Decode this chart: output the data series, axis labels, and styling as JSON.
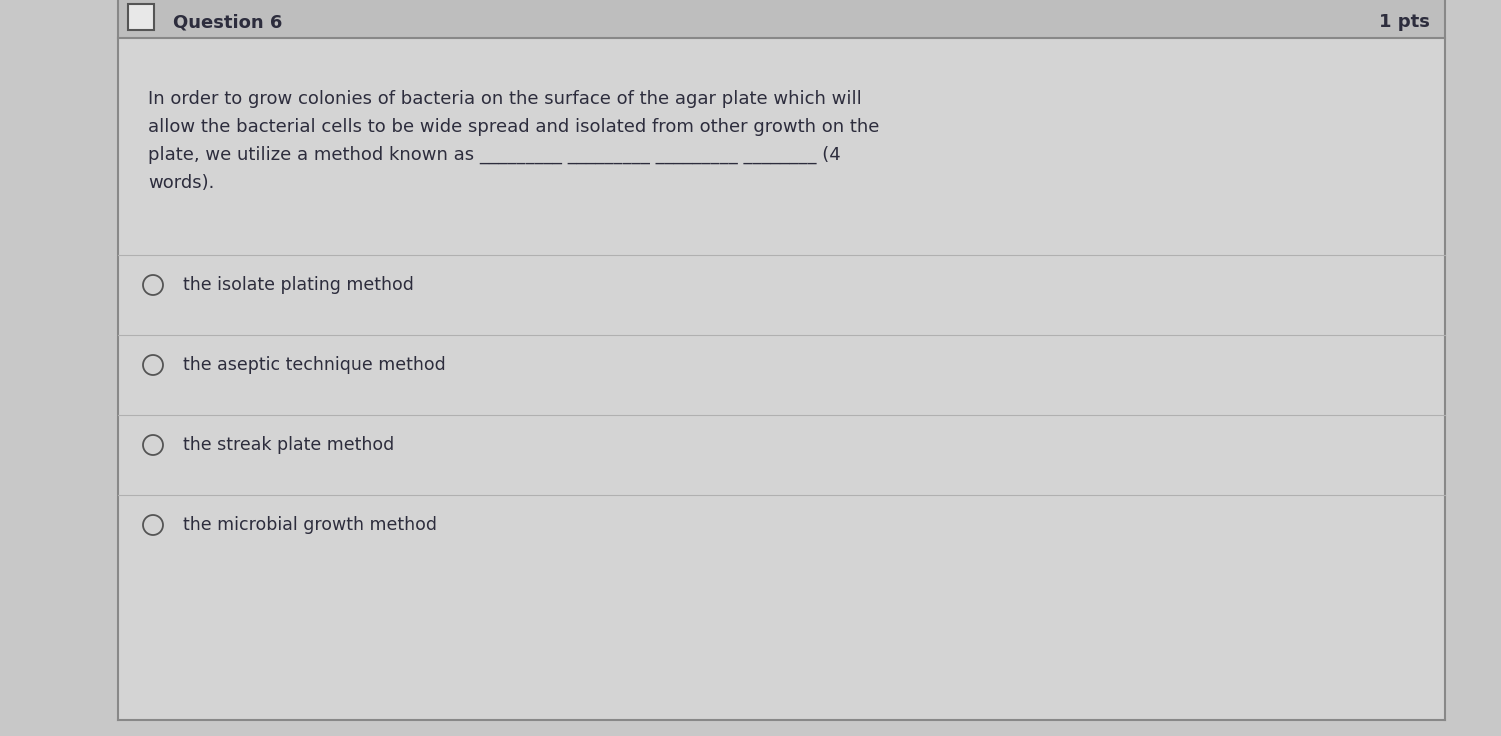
{
  "outer_bg": "#c8c8c8",
  "header_bg": "#bebebe",
  "body_bg": "#d4d4d4",
  "border_color": "#888888",
  "header_text": "Question 6",
  "pts_text": "1 pts",
  "question_lines": [
    "In order to grow colonies of bacteria on the surface of the agar plate which will",
    "allow the bacterial cells to be wide spread and isolated from other growth on the",
    "plate, we utilize a method known as _________ _________ _________ ________ (4",
    "words)."
  ],
  "choices": [
    "the isolate plating method",
    "the aseptic technique method",
    "the streak plate method",
    "the microbial growth method"
  ],
  "text_color": "#2d2d3d",
  "header_text_color": "#2d2d3d",
  "divider_color": "#b0b0b0",
  "radio_color": "#555555",
  "font_size_header": 13,
  "font_size_question": 13,
  "font_size_choice": 12.5,
  "fig_width": 15.01,
  "fig_height": 7.36,
  "dpi": 100
}
